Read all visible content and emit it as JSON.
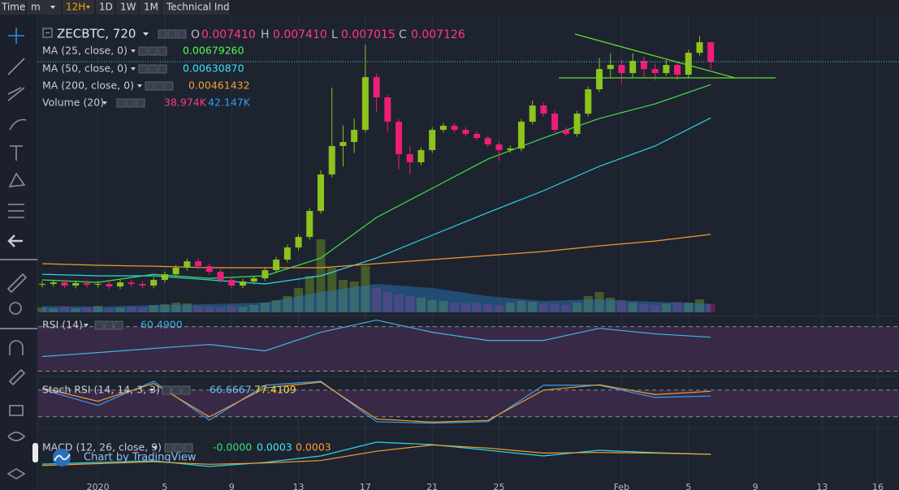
{
  "toolbar": {
    "items": [
      "Time",
      "m",
      "12H",
      "1D",
      "1W",
      "1M",
      "Technical Ind"
    ]
  },
  "legend": {
    "symbol": "ZECBTC, 720",
    "ohlc": [
      {
        "key": "O",
        "value": "0.007410"
      },
      {
        "key": "H",
        "value": "0.007410"
      },
      {
        "key": "L",
        "value": "0.007015"
      },
      {
        "key": "C",
        "value": "0.007126"
      }
    ]
  },
  "watermark": "Chart by TradingView",
  "chart_data": [
    {
      "type": "candlestick",
      "categories": [
        null,
        null,
        null,
        null,
        null,
        "2020",
        null,
        null,
        null,
        null,
        null,
        "5",
        null,
        null,
        null,
        null,
        null,
        "9",
        null,
        null,
        null,
        null,
        null,
        "13",
        null,
        null,
        null,
        null,
        null,
        "17",
        null,
        null,
        null,
        null,
        null,
        "21",
        null,
        null,
        null,
        null,
        null,
        "25",
        null,
        null,
        null,
        null,
        null,
        null,
        null,
        null,
        null,
        null,
        "Feb",
        null,
        null,
        null,
        null,
        null,
        "5",
        null,
        null,
        null,
        null,
        null,
        "9",
        null,
        null,
        null,
        null,
        null,
        "13",
        null,
        null,
        null,
        null,
        "16",
        null,
        null
      ],
      "candles": [
        [
          0.003881,
          0.003933,
          0.003841,
          0.003893
        ],
        [
          0.003893,
          0.003956,
          0.003853,
          0.003916
        ],
        [
          0.003916,
          0.003956,
          0.003829,
          0.003869
        ],
        [
          0.003869,
          0.003945,
          0.003829,
          0.003905
        ],
        [
          0.003905,
          0.003945,
          0.003841,
          0.003881
        ],
        [
          0.003881,
          0.003933,
          0.003841,
          0.003893
        ],
        [
          0.003893,
          0.003933,
          0.003817,
          0.003857
        ],
        [
          0.003857,
          0.003956,
          0.003817,
          0.003916
        ],
        [
          0.003916,
          0.003956,
          0.003853,
          0.003893
        ],
        [
          0.003893,
          0.003933,
          0.003829,
          0.003869
        ],
        [
          0.003869,
          0.003992,
          0.003829,
          0.003952
        ],
        [
          0.003952,
          0.004074,
          0.003912,
          0.004034
        ],
        [
          0.004034,
          0.004169,
          0.003994,
          0.004129
        ],
        [
          0.004129,
          0.004263,
          0.004089,
          0.004223
        ],
        [
          0.004223,
          0.004263,
          0.004112,
          0.004152
        ],
        [
          0.004152,
          0.004192,
          0.00403,
          0.00407
        ],
        [
          0.00407,
          0.00411,
          0.003912,
          0.003952
        ],
        [
          0.003952,
          0.003992,
          0.003829,
          0.003869
        ],
        [
          0.003869,
          0.003968,
          0.003829,
          0.003928
        ],
        [
          0.003928,
          0.004015,
          0.003888,
          0.003975
        ],
        [
          0.003975,
          0.004133,
          0.003935,
          0.004093
        ],
        [
          0.004093,
          0.004287,
          0.004053,
          0.004247
        ],
        [
          0.004247,
          0.004464,
          0.004207,
          0.004424
        ],
        [
          0.004424,
          0.004617,
          0.004384,
          0.004577
        ],
        [
          0.004577,
          0.004995,
          0.004537,
          0.004955
        ],
        [
          0.004955,
          0.005546,
          0.004915,
          0.005486
        ],
        [
          0.005486,
          0.00675,
          0.005446,
          0.005899
        ],
        [
          0.005899,
          0.0062,
          0.0056,
          0.005958
        ],
        [
          0.005958,
          0.0063,
          0.0058,
          0.006135
        ],
        [
          0.006135,
          0.007374,
          0.006095,
          0.006902
        ],
        [
          0.006902,
          0.00695,
          0.0064,
          0.006607
        ],
        [
          0.006607,
          0.006647,
          0.0061,
          0.006253
        ],
        [
          0.006253,
          0.006293,
          0.00556,
          0.005781
        ],
        [
          0.005781,
          0.0059,
          0.005486,
          0.005663
        ],
        [
          0.005663,
          0.00588,
          0.005623,
          0.00584
        ],
        [
          0.00584,
          0.006175,
          0.0058,
          0.006135
        ],
        [
          0.006135,
          0.006234,
          0.006095,
          0.006194
        ],
        [
          0.006194,
          0.006234,
          0.006095,
          0.006135
        ],
        [
          0.006135,
          0.006175,
          0.006036,
          0.006076
        ],
        [
          0.006076,
          0.006116,
          0.005977,
          0.006017
        ],
        [
          0.006017,
          0.006057,
          0.005882,
          0.005922
        ],
        [
          0.005922,
          0.005962,
          0.00568,
          0.00584
        ],
        [
          0.00584,
          0.005903,
          0.0058,
          0.005863
        ],
        [
          0.005863,
          0.006293,
          0.005823,
          0.006253
        ],
        [
          0.006253,
          0.00656,
          0.006213,
          0.006489
        ],
        [
          0.006489,
          0.006529,
          0.006331,
          0.006371
        ],
        [
          0.006371,
          0.006411,
          0.006095,
          0.006135
        ],
        [
          0.006135,
          0.006175,
          0.006036,
          0.006076
        ],
        [
          0.006076,
          0.006411,
          0.006036,
          0.006371
        ],
        [
          0.006371,
          0.006765,
          0.006331,
          0.006725
        ],
        [
          0.006725,
          0.00718,
          0.006685,
          0.00702
        ],
        [
          0.00702,
          0.00725,
          0.0069,
          0.007079
        ],
        [
          0.007079,
          0.00715,
          0.0068,
          0.006961
        ],
        [
          0.006961,
          0.00725,
          0.0069,
          0.007138
        ],
        [
          0.007138,
          0.0072,
          0.0069,
          0.00702
        ],
        [
          0.00702,
          0.0071,
          0.00685,
          0.006961
        ],
        [
          0.006961,
          0.00715,
          0.006921,
          0.007079
        ],
        [
          0.007079,
          0.007119,
          0.00685,
          0.006937
        ],
        [
          0.006937,
          0.0073,
          0.006897,
          0.007256
        ],
        [
          0.007256,
          0.0075,
          0.007216,
          0.00741
        ],
        [
          0.00741,
          0.00741,
          0.007015,
          0.007126
        ],
        null,
        null,
        null,
        null,
        null,
        null,
        null,
        null,
        null,
        null,
        null,
        null,
        null,
        null,
        null,
        null,
        null
      ],
      "up_color": "#8cc31c",
      "down_color": "#ec1e78",
      "ylim": [
        0.00348,
        0.00767
      ],
      "current_price_line": true,
      "current_price_color": "#4fd6e8",
      "series": [
        {
          "name": "MA (25, close, 0)",
          "legend_value": "0.00679260",
          "color": "#3fe04a",
          "x": [
            0,
            5,
            10,
            15,
            20,
            25,
            30,
            35,
            40,
            45,
            50,
            55,
            60
          ],
          "values": [
            0.003952,
            0.003916,
            0.004034,
            0.003975,
            0.004011,
            0.00427,
            0.00486,
            0.005285,
            0.00571,
            0.006017,
            0.0063,
            0.006512,
            0.0067926
          ]
        },
        {
          "name": "MA (50, close, 0)",
          "legend_value": "0.00630870",
          "color": "#2fd4e6",
          "x": [
            0,
            5,
            10,
            15,
            20,
            25,
            30,
            35,
            40,
            45,
            50,
            55,
            60
          ],
          "values": [
            0.004034,
            0.004011,
            0.004011,
            0.003952,
            0.003893,
            0.004011,
            0.00427,
            0.004601,
            0.004931,
            0.00525,
            0.005604,
            0.005899,
            0.0063087
          ]
        },
        {
          "name": "MA (200, close, 0)",
          "legend_value": "0.00461432",
          "color": "#f09a2e",
          "x": [
            0,
            5,
            10,
            15,
            20,
            25,
            30,
            35,
            40,
            45,
            50,
            55,
            60
          ],
          "values": [
            0.004188,
            0.004164,
            0.004152,
            0.004129,
            0.004129,
            0.004129,
            0.004188,
            0.004247,
            0.004306,
            0.004365,
            0.004447,
            0.004518,
            0.00461432
          ]
        }
      ],
      "volume": {
        "name": "Volume (20)",
        "legend_values": [
          "38.974K",
          "42.147K"
        ],
        "legend_colors": [
          "#ff3a86",
          "#2f9ff8"
        ],
        "ylim": [
          0,
          1384500
        ],
        "values": [
          23400,
          19500,
          27300,
          19500,
          23400,
          31200,
          19500,
          23400,
          27300,
          23400,
          35100,
          39000,
          46800,
          42900,
          31200,
          27300,
          23400,
          31200,
          27300,
          35100,
          46800,
          58500,
          78000,
          117000,
          175500,
          351000,
          214500,
          156000,
          148200,
          222300,
          117000,
          97500,
          85800,
          78000,
          70200,
          58500,
          54600,
          46800,
          42900,
          46800,
          39000,
          35100,
          46800,
          54600,
          50700,
          42900,
          39000,
          35100,
          46800,
          78000,
          97500,
          70200,
          58500,
          46800,
          39000,
          35100,
          42900,
          50700,
          46800,
          62400,
          38974,
          null,
          null,
          null,
          null,
          null,
          null,
          null,
          null,
          null,
          null,
          null,
          null,
          null,
          null,
          null,
          null,
          null
        ],
        "ma_color": "#2a7fc8",
        "ma_x": [
          0,
          5,
          10,
          15,
          20,
          25,
          30,
          35,
          40,
          45,
          50,
          55,
          60
        ],
        "ma_values": [
          31200,
          27300,
          35100,
          39000,
          46800,
          97500,
          136500,
          117000,
          78000,
          54600,
          62400,
          50700,
          42147
        ]
      }
    },
    {
      "type": "line",
      "title": "RSI (14)",
      "ylim": [
        26,
        77
      ],
      "bands": [
        70,
        30
      ],
      "band_color": "#4a2d55",
      "series": [
        {
          "legend_value": "60.4900",
          "color": "#45b2e0",
          "x": [
            0,
            5,
            10,
            15,
            20,
            25,
            30,
            35,
            40,
            45,
            50,
            55,
            60
          ],
          "values": [
            43.1,
            46.7,
            50.4,
            54,
            48.2,
            64.9,
            75.8,
            64.9,
            57.6,
            57.6,
            68.5,
            63.5,
            60.49
          ]
        }
      ]
    },
    {
      "type": "line",
      "title": "Stoch RSI (14, 14, 3, 3)",
      "ylim": [
        5,
        109
      ],
      "bands": [
        80,
        20
      ],
      "band_color": "#4a2d55",
      "series": [
        {
          "legend_value": "66.6667",
          "color": "#3b9ff0",
          "x": [
            0,
            5,
            10,
            15,
            20,
            25,
            30,
            35,
            40,
            45,
            50,
            55,
            60
          ],
          "values": [
            81.8,
            45.5,
            100,
            12.7,
            90.9,
            100,
            9.1,
            5.5,
            9.1,
            90.9,
            90.9,
            63.6,
            66.6667
          ]
        },
        {
          "legend_value": "77.4109",
          "color": "#f0a030",
          "x": [
            0,
            5,
            10,
            15,
            20,
            25,
            30,
            35,
            40,
            45,
            50,
            55,
            60
          ],
          "values": [
            85,
            55,
            95,
            20,
            85,
            98,
            15,
            8,
            12,
            80,
            92,
            70,
            77.4109
          ]
        }
      ]
    },
    {
      "type": "line",
      "title": "MACD (12, 26, close, 9)",
      "histogram_label": "-0.0000",
      "ylim": [
        -0.000117,
        0.000665
      ],
      "series": [
        {
          "legend_value": "0.0003",
          "color": "#2fd4e6",
          "x": [
            0,
            5,
            10,
            15,
            20,
            25,
            30,
            35,
            40,
            45,
            50,
            55,
            60
          ],
          "values": [
            0.000143,
            0.00017,
            0.000196,
            0.000104,
            0.00017,
            0.000274,
            0.000496,
            0.000457,
            0.000365,
            0.000274,
            0.000365,
            0.000326,
            0.0003
          ]
        },
        {
          "legend_value": "0.0003",
          "color": "#f0a030",
          "x": [
            0,
            5,
            10,
            15,
            20,
            25,
            30,
            35,
            40,
            45,
            50,
            55,
            60
          ],
          "values": [
            0.00012,
            0.00015,
            0.00018,
            0.00014,
            0.00016,
            0.0002,
            0.00035,
            0.00045,
            0.0004,
            0.00032,
            0.00033,
            0.00032,
            0.0003
          ]
        }
      ]
    }
  ]
}
